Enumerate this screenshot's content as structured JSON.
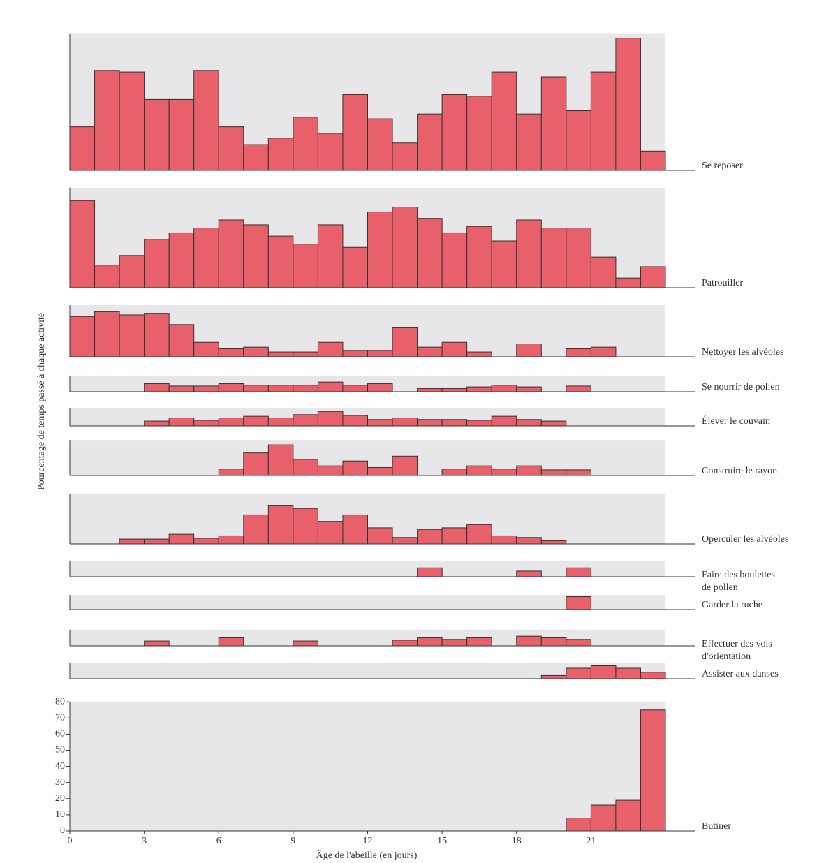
{
  "chart_data": [
    {
      "type": "histogram",
      "name": "Se reposer",
      "color": "#e8606a",
      "bins": [
        0,
        1,
        2,
        3,
        4,
        5,
        6,
        7,
        8,
        9,
        10,
        11,
        12,
        13,
        14,
        15,
        16,
        17,
        18,
        19,
        20,
        21,
        22,
        23,
        24
      ],
      "xlim": [
        0,
        24
      ],
      "ylim": [
        0,
        85
      ],
      "values": [
        27,
        62,
        61,
        44,
        44,
        62,
        27,
        16,
        20,
        33,
        23,
        47,
        32,
        17,
        35,
        47,
        46,
        61,
        35,
        58,
        37,
        61,
        82,
        12
      ]
    },
    {
      "type": "histogram",
      "name": "Patrouiller",
      "color": "#e8606a",
      "bins": [
        0,
        1,
        2,
        3,
        4,
        5,
        6,
        7,
        8,
        9,
        10,
        11,
        12,
        13,
        14,
        15,
        16,
        17,
        18,
        19,
        20,
        21,
        22,
        23,
        24
      ],
      "xlim": [
        0,
        24
      ],
      "ylim": [
        0,
        62
      ],
      "values": [
        54,
        14,
        20,
        30,
        34,
        37,
        42,
        39,
        32,
        27,
        39,
        25,
        47,
        50,
        43,
        34,
        38,
        29,
        42,
        37,
        37,
        19,
        6,
        13
      ]
    },
    {
      "type": "histogram",
      "name": "Nettoyer les alvéoles",
      "color": "#e8606a",
      "bins": [
        0,
        1,
        2,
        3,
        4,
        5,
        6,
        7,
        8,
        9,
        10,
        11,
        12,
        13,
        14,
        15,
        16,
        17,
        18,
        19,
        20,
        21,
        22,
        23,
        24
      ],
      "xlim": [
        0,
        24
      ],
      "ylim": [
        0,
        32
      ],
      "values": [
        25,
        28,
        26,
        27,
        20,
        9,
        5,
        6,
        3,
        3,
        9,
        4,
        4,
        18,
        6,
        9,
        3,
        0,
        8,
        0,
        5,
        6,
        0,
        0
      ]
    },
    {
      "type": "histogram",
      "name": "Se nourrir de pollen",
      "color": "#e8606a",
      "bins": [
        0,
        1,
        2,
        3,
        4,
        5,
        6,
        7,
        8,
        9,
        10,
        11,
        12,
        13,
        14,
        15,
        16,
        17,
        18,
        19,
        20,
        21,
        22,
        23,
        24
      ],
      "xlim": [
        0,
        24
      ],
      "ylim": [
        0,
        10
      ],
      "values": [
        0,
        0,
        0,
        5,
        3.5,
        3.5,
        5,
        4,
        4,
        4,
        6,
        4,
        5,
        0,
        2,
        2,
        3,
        4,
        3,
        0,
        3.5,
        0,
        0,
        0
      ]
    },
    {
      "type": "histogram",
      "name": "Élever le couvain",
      "color": "#e8606a",
      "bins": [
        0,
        1,
        2,
        3,
        4,
        5,
        6,
        7,
        8,
        9,
        10,
        11,
        12,
        13,
        14,
        15,
        16,
        17,
        18,
        19,
        20,
        21,
        22,
        23,
        24
      ],
      "xlim": [
        0,
        24
      ],
      "ylim": [
        0,
        11
      ],
      "values": [
        0,
        0,
        0,
        3,
        5,
        3.5,
        5,
        6,
        5,
        7,
        9,
        6.5,
        4,
        5,
        4,
        4,
        3.5,
        6,
        4,
        3,
        0,
        0,
        0,
        0
      ]
    },
    {
      "type": "histogram",
      "name": "Construire le rayon",
      "color": "#e8606a",
      "bins": [
        0,
        1,
        2,
        3,
        4,
        5,
        6,
        7,
        8,
        9,
        10,
        11,
        12,
        13,
        14,
        15,
        16,
        17,
        18,
        19,
        20,
        21,
        22,
        23,
        24
      ],
      "xlim": [
        0,
        24
      ],
      "ylim": [
        0,
        22
      ],
      "values": [
        0,
        0,
        0,
        0,
        0,
        0,
        4,
        14,
        19,
        10,
        6,
        9,
        5,
        12,
        0,
        4,
        6,
        4,
        6,
        3.5,
        3.5,
        0,
        0,
        0
      ]
    },
    {
      "type": "histogram",
      "name": "Operculer les alvéoles",
      "color": "#e8606a",
      "bins": [
        0,
        1,
        2,
        3,
        4,
        5,
        6,
        7,
        8,
        9,
        10,
        11,
        12,
        13,
        14,
        15,
        16,
        17,
        18,
        19,
        20,
        21,
        22,
        23,
        24
      ],
      "xlim": [
        0,
        24
      ],
      "ylim": [
        0,
        31
      ],
      "values": [
        0,
        0,
        3,
        3,
        6,
        3.5,
        5,
        18,
        24,
        22,
        14,
        18,
        10,
        4,
        9,
        10,
        12,
        5,
        4,
        2,
        0,
        0,
        0,
        0
      ]
    },
    {
      "type": "histogram",
      "name": [
        "Faire des boulettes",
        "de pollen"
      ],
      "color": "#e8606a",
      "bins": [
        0,
        1,
        2,
        3,
        4,
        5,
        6,
        7,
        8,
        9,
        10,
        11,
        12,
        13,
        14,
        15,
        16,
        17,
        18,
        19,
        20,
        21,
        22,
        23,
        24
      ],
      "xlim": [
        0,
        24
      ],
      "ylim": [
        0,
        10
      ],
      "values": [
        0,
        0,
        0,
        0,
        0,
        0,
        0,
        0,
        0,
        0,
        0,
        0,
        0,
        0,
        5.5,
        0,
        0,
        0,
        3.5,
        0,
        5.5,
        0,
        0,
        0
      ]
    },
    {
      "type": "histogram",
      "name": "Garder la ruche",
      "color": "#e8606a",
      "bins": [
        0,
        1,
        2,
        3,
        4,
        5,
        6,
        7,
        8,
        9,
        10,
        11,
        12,
        13,
        14,
        15,
        16,
        17,
        18,
        19,
        20,
        21,
        22,
        23,
        24
      ],
      "xlim": [
        0,
        24
      ],
      "ylim": [
        0,
        9
      ],
      "values": [
        0,
        0,
        0,
        0,
        0,
        0,
        0,
        0,
        0,
        0,
        0,
        0,
        0,
        0,
        0,
        0,
        0,
        0,
        0,
        0,
        8,
        0,
        0,
        0
      ]
    },
    {
      "type": "histogram",
      "name": [
        "Effectuer des vols",
        "d'orientation"
      ],
      "color": "#e8606a",
      "bins": [
        0,
        1,
        2,
        3,
        4,
        5,
        6,
        7,
        8,
        9,
        10,
        11,
        12,
        13,
        14,
        15,
        16,
        17,
        18,
        19,
        20,
        21,
        22,
        23,
        24
      ],
      "xlim": [
        0,
        24
      ],
      "ylim": [
        0,
        10
      ],
      "values": [
        0,
        0,
        0,
        3,
        0,
        0,
        5,
        0,
        0,
        3,
        0,
        0,
        0,
        3.5,
        5,
        4,
        5,
        0,
        6,
        5,
        4,
        0,
        0,
        0
      ]
    },
    {
      "type": "histogram",
      "name": "Assister aux danses",
      "color": "#e8606a",
      "bins": [
        0,
        1,
        2,
        3,
        4,
        5,
        6,
        7,
        8,
        9,
        10,
        11,
        12,
        13,
        14,
        15,
        16,
        17,
        18,
        19,
        20,
        21,
        22,
        23,
        24
      ],
      "xlim": [
        0,
        24
      ],
      "ylim": [
        0,
        10
      ],
      "values": [
        0,
        0,
        0,
        0,
        0,
        0,
        0,
        0,
        0,
        0,
        0,
        0,
        0,
        0,
        0,
        0,
        0,
        0,
        0,
        2,
        6.5,
        8,
        6.5,
        4
      ]
    },
    {
      "type": "histogram",
      "name": "Butiner",
      "color": "#e8606a",
      "bins": [
        0,
        1,
        2,
        3,
        4,
        5,
        6,
        7,
        8,
        9,
        10,
        11,
        12,
        13,
        14,
        15,
        16,
        17,
        18,
        19,
        20,
        21,
        22,
        23,
        24
      ],
      "xlim": [
        0,
        24
      ],
      "ylim": [
        0,
        80
      ],
      "values": [
        0,
        0,
        0,
        0,
        0,
        0,
        0,
        0,
        0,
        0,
        0,
        0,
        0,
        0,
        0,
        0,
        0,
        0,
        0,
        0,
        8,
        16,
        19,
        75
      ],
      "yticks": [
        0,
        10,
        20,
        30,
        40,
        50,
        60,
        70,
        80
      ],
      "xticks": [
        0,
        3,
        6,
        9,
        12,
        15,
        18,
        21
      ],
      "xlabel": "Âge de l'abeille (en jours)",
      "ylabel": "Pourcentage de temps passé à chaque activité"
    }
  ]
}
